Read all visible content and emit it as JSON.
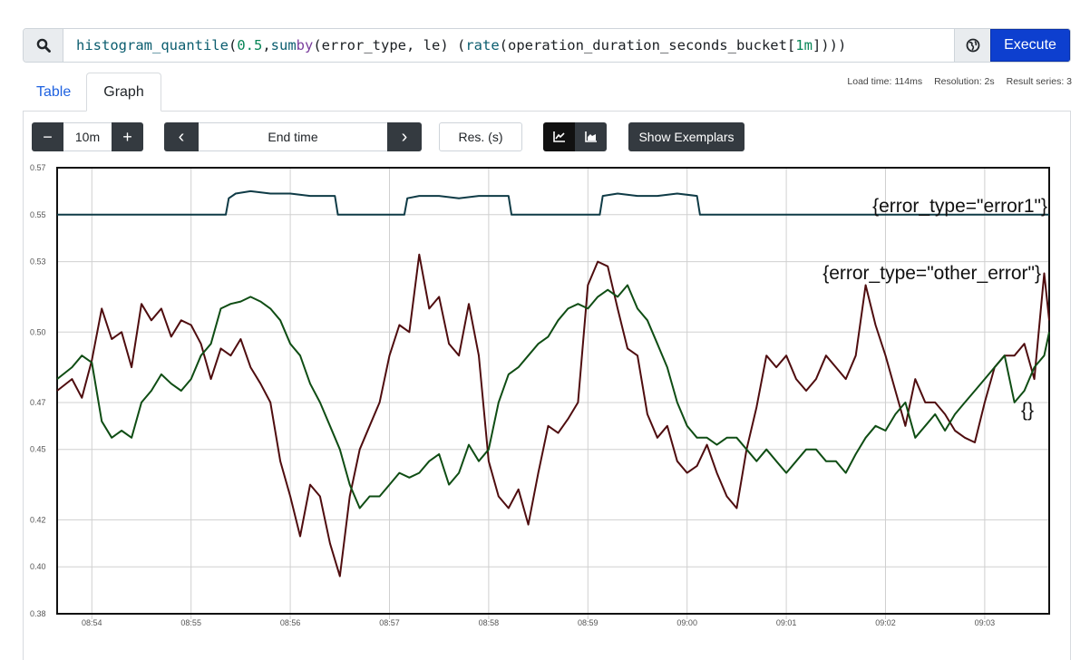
{
  "query": {
    "parts": [
      {
        "t": "histogram_quantile",
        "c": "fn"
      },
      {
        "t": "(",
        "c": ""
      },
      {
        "t": "0.5",
        "c": "num"
      },
      {
        "t": ", ",
        "c": ""
      },
      {
        "t": "sum",
        "c": "fn"
      },
      {
        "t": " ",
        "c": ""
      },
      {
        "t": "by",
        "c": "kw"
      },
      {
        "t": "(error_type, le) (",
        "c": ""
      },
      {
        "t": "rate",
        "c": "fn"
      },
      {
        "t": "(operation_duration_seconds_bucket[",
        "c": ""
      },
      {
        "t": "1m",
        "c": "num"
      },
      {
        "t": "])))",
        "c": ""
      }
    ],
    "execute_label": "Execute"
  },
  "tabs": [
    {
      "label": "Table",
      "active": false
    },
    {
      "label": "Graph",
      "active": true
    }
  ],
  "stats": {
    "load_time": "Load time: 114ms",
    "resolution": "Resolution: 2s",
    "result_series": "Result series: 3"
  },
  "controls": {
    "minus": "−",
    "range": "10m",
    "plus": "+",
    "prev": "‹",
    "end_time_placeholder": "End time",
    "next": "›",
    "resolution_placeholder": "Res. (s)",
    "show_exemplars": "Show Exemplars"
  },
  "colors": {
    "exec_blue": "#0d3fcf",
    "dark": "#343a40",
    "series_error1": "#0f3b46",
    "series_other": "#4f0d0f",
    "series_empty": "#0f4d14"
  },
  "chart_data": {
    "type": "line",
    "ylim": [
      0.38,
      0.57
    ],
    "y_ticks": [
      "0.38",
      "0.40",
      "0.42",
      "0.45",
      "0.47",
      "0.50",
      "0.53",
      "0.55",
      "0.57"
    ],
    "x_ticks": [
      "08:54",
      "08:55",
      "08:56",
      "08:57",
      "08:58",
      "08:59",
      "09:00",
      "09:01",
      "09:02",
      "09:03"
    ],
    "x_range_minutes": [
      -0.35,
      9.65
    ],
    "grid": true,
    "series": [
      {
        "name": "{error_type=\"error1\"}",
        "color": "#0f3b46",
        "x": [
          -0.35,
          1.35,
          1.38,
          1.45,
          1.6,
          1.8,
          2.0,
          2.2,
          2.45,
          2.48,
          3.15,
          3.18,
          3.3,
          3.5,
          3.7,
          3.9,
          4.2,
          4.23,
          5.12,
          5.15,
          5.3,
          5.5,
          5.7,
          5.9,
          6.1,
          6.13,
          9.65
        ],
        "values": [
          0.55,
          0.55,
          0.557,
          0.559,
          0.56,
          0.559,
          0.559,
          0.558,
          0.558,
          0.55,
          0.55,
          0.557,
          0.558,
          0.558,
          0.557,
          0.558,
          0.558,
          0.55,
          0.55,
          0.558,
          0.559,
          0.558,
          0.558,
          0.559,
          0.558,
          0.55,
          0.55
        ]
      },
      {
        "name": "{error_type=\"other_error\"}",
        "color": "#4f0d0f",
        "x": [
          -0.35,
          -0.2,
          -0.1,
          0.0,
          0.1,
          0.2,
          0.3,
          0.4,
          0.5,
          0.6,
          0.7,
          0.8,
          0.9,
          1.0,
          1.1,
          1.2,
          1.3,
          1.4,
          1.5,
          1.6,
          1.7,
          1.8,
          1.9,
          2.0,
          2.1,
          2.2,
          2.3,
          2.4,
          2.5,
          2.6,
          2.7,
          2.8,
          2.9,
          3.0,
          3.1,
          3.2,
          3.3,
          3.4,
          3.5,
          3.6,
          3.7,
          3.8,
          3.9,
          4.0,
          4.1,
          4.2,
          4.3,
          4.4,
          4.5,
          4.6,
          4.7,
          4.8,
          4.9,
          5.0,
          5.1,
          5.2,
          5.3,
          5.4,
          5.5,
          5.6,
          5.7,
          5.8,
          5.9,
          6.0,
          6.1,
          6.2,
          6.3,
          6.4,
          6.5,
          6.6,
          6.7,
          6.8,
          6.9,
          7.0,
          7.1,
          7.2,
          7.3,
          7.4,
          7.5,
          7.6,
          7.7,
          7.8,
          7.9,
          8.0,
          8.1,
          8.2,
          8.3,
          8.4,
          8.5,
          8.6,
          8.7,
          8.8,
          8.9,
          9.0,
          9.1,
          9.2,
          9.3,
          9.4,
          9.5,
          9.6,
          9.65
        ],
        "values": [
          0.475,
          0.48,
          0.472,
          0.488,
          0.51,
          0.497,
          0.5,
          0.485,
          0.512,
          0.505,
          0.51,
          0.498,
          0.505,
          0.503,
          0.495,
          0.48,
          0.493,
          0.49,
          0.497,
          0.485,
          0.478,
          0.47,
          0.445,
          0.43,
          0.413,
          0.435,
          0.43,
          0.41,
          0.396,
          0.43,
          0.45,
          0.46,
          0.47,
          0.49,
          0.503,
          0.5,
          0.533,
          0.51,
          0.515,
          0.495,
          0.49,
          0.512,
          0.49,
          0.445,
          0.43,
          0.425,
          0.433,
          0.418,
          0.44,
          0.46,
          0.457,
          0.463,
          0.47,
          0.52,
          0.53,
          0.528,
          0.51,
          0.493,
          0.49,
          0.465,
          0.455,
          0.46,
          0.445,
          0.44,
          0.443,
          0.452,
          0.44,
          0.43,
          0.425,
          0.45,
          0.468,
          0.49,
          0.485,
          0.49,
          0.48,
          0.475,
          0.48,
          0.49,
          0.485,
          0.48,
          0.49,
          0.52,
          0.503,
          0.49,
          0.475,
          0.46,
          0.48,
          0.47,
          0.47,
          0.465,
          0.458,
          0.455,
          0.453,
          0.47,
          0.485,
          0.49,
          0.49,
          0.495,
          0.48,
          0.525,
          0.505
        ]
      },
      {
        "name": "{}",
        "color": "#0f4d14",
        "x": [
          -0.35,
          -0.2,
          -0.1,
          0.0,
          0.1,
          0.2,
          0.3,
          0.4,
          0.5,
          0.6,
          0.7,
          0.8,
          0.9,
          1.0,
          1.1,
          1.2,
          1.3,
          1.4,
          1.5,
          1.6,
          1.7,
          1.8,
          1.9,
          2.0,
          2.1,
          2.2,
          2.3,
          2.4,
          2.5,
          2.6,
          2.7,
          2.8,
          2.9,
          3.0,
          3.1,
          3.2,
          3.3,
          3.4,
          3.5,
          3.6,
          3.7,
          3.8,
          3.9,
          4.0,
          4.1,
          4.2,
          4.3,
          4.4,
          4.5,
          4.6,
          4.7,
          4.8,
          4.9,
          5.0,
          5.1,
          5.2,
          5.3,
          5.4,
          5.5,
          5.6,
          5.7,
          5.8,
          5.9,
          6.0,
          6.1,
          6.2,
          6.3,
          6.4,
          6.5,
          6.6,
          6.7,
          6.8,
          6.9,
          7.0,
          7.1,
          7.2,
          7.3,
          7.4,
          7.5,
          7.6,
          7.7,
          7.8,
          7.9,
          8.0,
          8.1,
          8.2,
          8.3,
          8.4,
          8.5,
          8.6,
          8.7,
          8.8,
          8.9,
          9.0,
          9.1,
          9.2,
          9.3,
          9.4,
          9.5,
          9.6,
          9.65
        ],
        "values": [
          0.48,
          0.485,
          0.49,
          0.487,
          0.462,
          0.455,
          0.458,
          0.455,
          0.47,
          0.475,
          0.482,
          0.478,
          0.475,
          0.48,
          0.49,
          0.495,
          0.51,
          0.512,
          0.513,
          0.515,
          0.513,
          0.51,
          0.505,
          0.495,
          0.49,
          0.478,
          0.47,
          0.46,
          0.45,
          0.435,
          0.425,
          0.43,
          0.43,
          0.435,
          0.44,
          0.438,
          0.44,
          0.445,
          0.448,
          0.435,
          0.44,
          0.452,
          0.445,
          0.45,
          0.47,
          0.482,
          0.485,
          0.49,
          0.495,
          0.498,
          0.505,
          0.51,
          0.512,
          0.51,
          0.515,
          0.518,
          0.515,
          0.52,
          0.51,
          0.505,
          0.495,
          0.485,
          0.47,
          0.46,
          0.455,
          0.455,
          0.452,
          0.455,
          0.455,
          0.45,
          0.445,
          0.45,
          0.445,
          0.44,
          0.445,
          0.45,
          0.45,
          0.445,
          0.445,
          0.44,
          0.448,
          0.455,
          0.46,
          0.458,
          0.465,
          0.47,
          0.455,
          0.46,
          0.465,
          0.458,
          0.465,
          0.47,
          0.475,
          0.48,
          0.485,
          0.49,
          0.47,
          0.475,
          0.485,
          0.49,
          0.5
        ]
      }
    ]
  }
}
